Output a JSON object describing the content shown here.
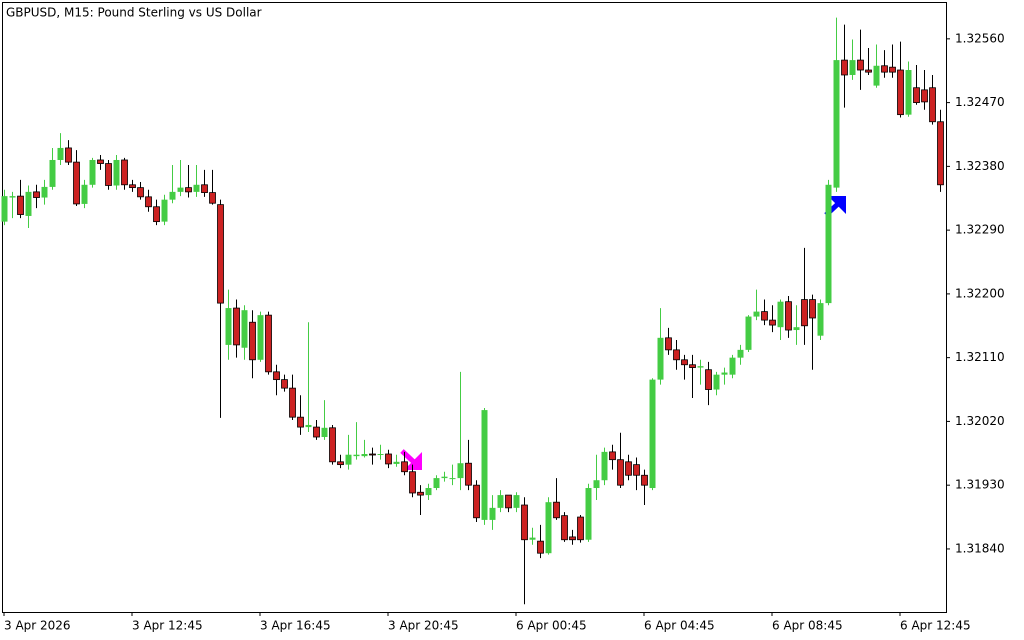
{
  "chart_data": {
    "type": "candlestick",
    "title": "GBPUSD, M15:  Pound Sterling vs US Dollar",
    "categories": [
      "3 Apr 2026",
      null,
      null,
      null,
      null,
      null,
      null,
      null,
      null,
      null,
      null,
      null,
      null,
      null,
      null,
      null,
      "3 Apr 12:45",
      null,
      null,
      null,
      null,
      null,
      null,
      null,
      null,
      null,
      null,
      null,
      null,
      null,
      null,
      null,
      "3 Apr 16:45",
      null,
      null,
      null,
      null,
      null,
      null,
      null,
      null,
      null,
      null,
      null,
      null,
      null,
      null,
      null,
      "3 Apr 20:45",
      null,
      null,
      null,
      null,
      null,
      null,
      null,
      null,
      null,
      null,
      null,
      null,
      null,
      null,
      null,
      "6 Apr 00:45",
      null,
      null,
      null,
      null,
      null,
      null,
      null,
      null,
      null,
      null,
      null,
      null,
      null,
      null,
      null,
      "6 Apr 04:45",
      null,
      null,
      null,
      null,
      null,
      null,
      null,
      null,
      null,
      null,
      null,
      null,
      null,
      null,
      null,
      "6 Apr 08:45",
      null,
      null,
      null,
      null,
      null,
      null,
      null,
      null,
      null,
      null,
      null,
      null,
      null,
      null,
      null,
      "6 Apr 12:45",
      null,
      null,
      null,
      null,
      null
    ],
    "open": [
      1.32302,
      1.32336,
      1.32338,
      1.3231,
      1.32344,
      1.32336,
      1.32351,
      1.32389,
      1.32406,
      1.32386,
      1.32327,
      1.32354,
      1.32389,
      1.32384,
      1.32353,
      1.32389,
      1.32354,
      1.3235,
      1.32337,
      1.32323,
      1.32302,
      1.32333,
      1.32344,
      1.3235,
      1.32344,
      1.32354,
      1.32343,
      1.32326,
      1.32128,
      1.3218,
      1.32124,
      1.3216,
      1.32107,
      1.3217,
      1.3209,
      1.32079,
      1.32067,
      1.32026,
      1.32012,
      1.32012,
      1.31998,
      1.32011,
      1.31963,
      1.31959,
      1.31971,
      1.31971,
      1.31974,
      1.31973,
      1.31974,
      1.3196,
      1.31963,
      1.31949,
      1.3192,
      1.31916,
      1.31926,
      1.3194,
      1.31939,
      1.3194,
      1.31961,
      1.3193,
      1.31881,
      1.31881,
      1.31898,
      1.31916,
      1.31898,
      1.31902,
      1.31853,
      1.31851,
      1.31834,
      1.31906,
      1.31887,
      1.31857,
      1.31885,
      1.31853,
      1.31926,
      1.31937,
      1.31977,
      1.31966,
      1.31963,
      1.31959,
      1.31944,
      1.31926,
      1.32079,
      1.32138,
      1.32121,
      1.32107,
      1.321,
      1.32096,
      1.32093,
      1.32065,
      1.32086,
      1.32086,
      1.3211,
      1.32121,
      1.32168,
      1.32175,
      1.32163,
      1.32153,
      1.32189,
      1.32149,
      1.32192,
      1.32192,
      1.32141,
      1.32187,
      1.3235,
      1.3253,
      1.32509,
      1.3253,
      1.32516,
      1.32494,
      1.32522,
      1.3252,
      1.32516,
      1.32453,
      1.32491,
      1.32488,
      1.32491,
      1.32443
    ],
    "high": [
      1.32347,
      1.32344,
      1.32361,
      1.32353,
      1.32354,
      1.32361,
      1.32406,
      1.32427,
      1.32417,
      1.32403,
      1.32361,
      1.32392,
      1.32396,
      1.32389,
      1.32396,
      1.32392,
      1.32361,
      1.32358,
      1.32347,
      1.32333,
      1.3234,
      1.32382,
      1.32389,
      1.32382,
      1.32382,
      1.32375,
      1.32375,
      1.32333,
      1.32206,
      1.32192,
      1.32184,
      1.32177,
      1.32175,
      1.32175,
      1.321,
      1.32086,
      1.32086,
      1.32057,
      1.3216,
      1.32022,
      1.3205,
      1.32015,
      1.31973,
      1.32001,
      1.32019,
      1.31994,
      1.31983,
      1.31987,
      1.3198,
      1.31973,
      1.31977,
      1.31959,
      1.3193,
      1.31932,
      1.31944,
      1.31949,
      1.31959,
      1.3209,
      1.31994,
      1.31937,
      1.32039,
      1.31916,
      1.31923,
      1.31916,
      1.3192,
      1.31913,
      1.3187,
      1.31874,
      1.31913,
      1.3194,
      1.31892,
      1.31867,
      1.31888,
      1.31932,
      1.31973,
      1.31983,
      1.31987,
      1.32004,
      1.31973,
      1.31969,
      1.31952,
      1.32081,
      1.3218,
      1.32152,
      1.32135,
      1.32114,
      1.32114,
      1.32107,
      1.32104,
      1.3209,
      1.32096,
      1.32114,
      1.32128,
      1.3217,
      1.32206,
      1.32192,
      1.32184,
      1.32192,
      1.32197,
      1.32184,
      1.32265,
      1.32199,
      1.32192,
      1.32361,
      1.3259,
      1.3258,
      1.32559,
      1.32573,
      1.32547,
      1.32552,
      1.32544,
      1.32552,
      1.32556,
      1.32528,
      1.32523,
      1.32516,
      1.32509,
      1.3246
    ],
    "low": [
      1.32297,
      1.32307,
      1.32307,
      1.32293,
      1.32321,
      1.32326,
      1.32347,
      1.32382,
      1.32382,
      1.32324,
      1.32321,
      1.3235,
      1.32375,
      1.32347,
      1.32347,
      1.32347,
      1.32344,
      1.32333,
      1.32316,
      1.32297,
      1.32297,
      1.32328,
      1.32338,
      1.32336,
      1.32337,
      1.32337,
      1.32326,
      1.32025,
      1.32107,
      1.3211,
      1.32107,
      1.32081,
      1.32104,
      1.32086,
      1.32057,
      1.32062,
      1.32022,
      1.32001,
      1.32005,
      1.31994,
      1.31994,
      1.31959,
      1.31954,
      1.31952,
      1.31966,
      1.31969,
      1.31959,
      1.31966,
      1.31954,
      1.31956,
      1.31944,
      1.31913,
      1.31888,
      1.31909,
      1.31923,
      1.31935,
      1.3193,
      1.31923,
      1.31923,
      1.31878,
      1.31874,
      1.31867,
      1.31892,
      1.31892,
      1.31892,
      1.31762,
      1.31846,
      1.31827,
      1.31832,
      1.31881,
      1.3185,
      1.31846,
      1.31849,
      1.3185,
      1.31909,
      1.3193,
      1.31952,
      1.31926,
      1.31937,
      1.31923,
      1.31902,
      1.31923,
      1.32072,
      1.32114,
      1.32093,
      1.32079,
      1.32053,
      1.32072,
      1.32043,
      1.32057,
      1.32072,
      1.32081,
      1.321,
      1.32118,
      1.32163,
      1.32156,
      1.32146,
      1.32135,
      1.32138,
      1.32128,
      1.32128,
      1.32093,
      1.32135,
      1.32184,
      1.32344,
      1.32463,
      1.32502,
      1.32488,
      1.32509,
      1.32491,
      1.32505,
      1.32505,
      1.32449,
      1.3245,
      1.32467,
      1.3246,
      1.32439,
      1.32344
    ],
    "close": [
      1.32338,
      1.32338,
      1.32312,
      1.32344,
      1.32336,
      1.32351,
      1.32389,
      1.32406,
      1.32386,
      1.32327,
      1.32354,
      1.32389,
      1.32384,
      1.32353,
      1.32389,
      1.32354,
      1.3235,
      1.32337,
      1.32323,
      1.32302,
      1.32333,
      1.32344,
      1.3235,
      1.32344,
      1.32354,
      1.32343,
      1.32328,
      1.32187,
      1.3218,
      1.32128,
      1.32177,
      1.32107,
      1.3217,
      1.3209,
      1.32079,
      1.32067,
      1.32026,
      1.32012,
      1.32015,
      1.31998,
      1.32011,
      1.31963,
      1.31959,
      1.31973,
      1.31973,
      1.31974,
      1.31973,
      1.31974,
      1.3196,
      1.31963,
      1.31949,
      1.31919,
      1.31916,
      1.31926,
      1.3194,
      1.31942,
      1.3194,
      1.31961,
      1.3193,
      1.31884,
      1.32036,
      1.31898,
      1.31916,
      1.31898,
      1.31916,
      1.31853,
      1.31856,
      1.31834,
      1.31906,
      1.31884,
      1.31853,
      1.31853,
      1.31853,
      1.31926,
      1.31937,
      1.31977,
      1.31966,
      1.3193,
      1.31944,
      1.31944,
      1.3193,
      1.32079,
      1.32138,
      1.32121,
      1.32107,
      1.321,
      1.32096,
      1.32098,
      1.32065,
      1.32086,
      1.32089,
      1.3211,
      1.32121,
      1.32168,
      1.32175,
      1.32163,
      1.32156,
      1.32189,
      1.32149,
      1.32153,
      1.32155,
      1.32166,
      1.32187,
      1.32354,
      1.3253,
      1.32509,
      1.3253,
      1.32516,
      1.32513,
      1.32522,
      1.32513,
      1.32513,
      1.32453,
      1.32516,
      1.3247,
      1.32471,
      1.32443,
      1.32354
    ],
    "up_color": "#44cc44",
    "down_color": "#cc2222",
    "ylim": [
      1.31751,
      1.32612
    ],
    "yticks": [
      {
        "value": 1.3184,
        "label": "1.31840"
      },
      {
        "value": 1.3193,
        "label": "1.31930"
      },
      {
        "value": 1.3202,
        "label": "1.32020"
      },
      {
        "value": 1.3211,
        "label": "1.32110"
      },
      {
        "value": 1.322,
        "label": "1.32200"
      },
      {
        "value": 1.3229,
        "label": "1.32290"
      },
      {
        "value": 1.3238,
        "label": "1.32380"
      },
      {
        "value": 1.3247,
        "label": "1.32470"
      },
      {
        "value": 1.3256,
        "label": "1.32560"
      }
    ],
    "grid": false
  }
}
